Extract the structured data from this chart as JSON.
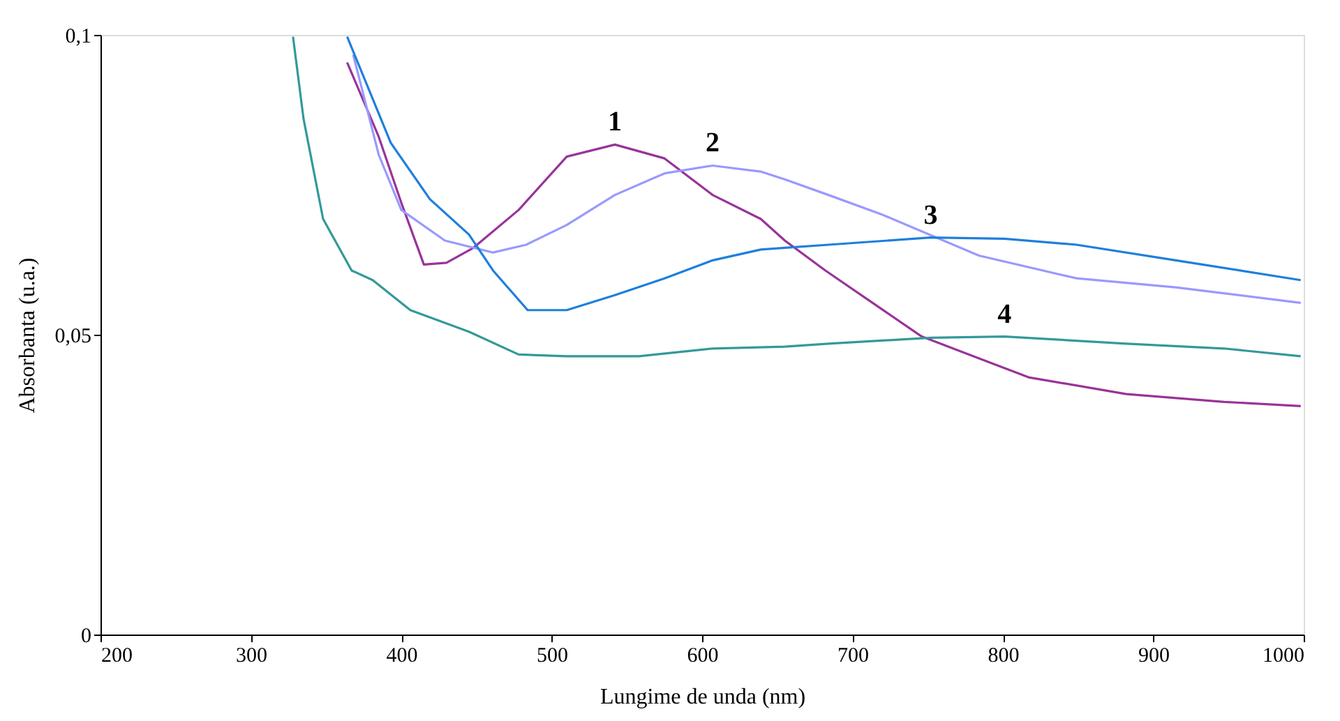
{
  "chart_data": {
    "type": "line",
    "xlabel": "Lungime de unda (nm)",
    "ylabel": "Absorbanta (u.a.)",
    "xlim": [
      200,
      1000
    ],
    "xticks": [
      200,
      300,
      400,
      500,
      600,
      700,
      800,
      900,
      1000
    ],
    "ylim": [
      0,
      0.1
    ],
    "yticks": [
      {
        "value": 0,
        "label": "0"
      },
      {
        "value": 0.05,
        "label": "0,05"
      },
      {
        "value": 0.1,
        "label": "0,1"
      }
    ],
    "grid": false,
    "marker": "none",
    "line_style": "solid",
    "series": [
      {
        "name": "1",
        "color": "#993399",
        "x": [
          364,
          385,
          400,
          415,
          430,
          448,
          478,
          510,
          542,
          575,
          607,
          639,
          655,
          682,
          746,
          817,
          882,
          947,
          998
        ],
        "values": [
          0.0954,
          0.083,
          0.072,
          0.0617,
          0.062,
          0.0645,
          0.0708,
          0.0797,
          0.0817,
          0.0794,
          0.0733,
          0.0693,
          0.0657,
          0.0607,
          0.0497,
          0.0429,
          0.0401,
          0.0388,
          0.0381
        ]
      },
      {
        "name": "2",
        "color": "#9999ff",
        "x": [
          368,
          385,
          400,
          429,
          461,
          483,
          510,
          542,
          575,
          607,
          639,
          655,
          684,
          720,
          784,
          849,
          915,
          998
        ],
        "values": [
          0.0967,
          0.08,
          0.0708,
          0.0657,
          0.0637,
          0.065,
          0.0683,
          0.0733,
          0.0769,
          0.0782,
          0.0772,
          0.0759,
          0.0733,
          0.07,
          0.0632,
          0.0594,
          0.0579,
          0.0553
        ]
      },
      {
        "name": "3",
        "color": "#1e7fdc",
        "x": [
          364,
          393,
          419,
          445,
          461,
          484,
          510,
          542,
          575,
          607,
          639,
          655,
          684,
          752,
          801,
          849,
          915,
          998
        ],
        "values": [
          0.0997,
          0.082,
          0.0726,
          0.0667,
          0.0607,
          0.0541,
          0.0541,
          0.0566,
          0.0594,
          0.0624,
          0.0642,
          0.0645,
          0.065,
          0.0662,
          0.066,
          0.065,
          0.0624,
          0.0591
        ]
      },
      {
        "name": "4",
        "color": "#339999",
        "x": [
          328,
          335,
          348,
          367,
          381,
          406,
          445,
          478,
          510,
          558,
          607,
          655,
          684,
          752,
          801,
          882,
          947,
          998
        ],
        "values": [
          0.0997,
          0.086,
          0.0693,
          0.0607,
          0.0591,
          0.0541,
          0.0505,
          0.0467,
          0.0464,
          0.0464,
          0.0477,
          0.048,
          0.0485,
          0.0495,
          0.0497,
          0.0485,
          0.0477,
          0.0464
        ]
      }
    ]
  }
}
